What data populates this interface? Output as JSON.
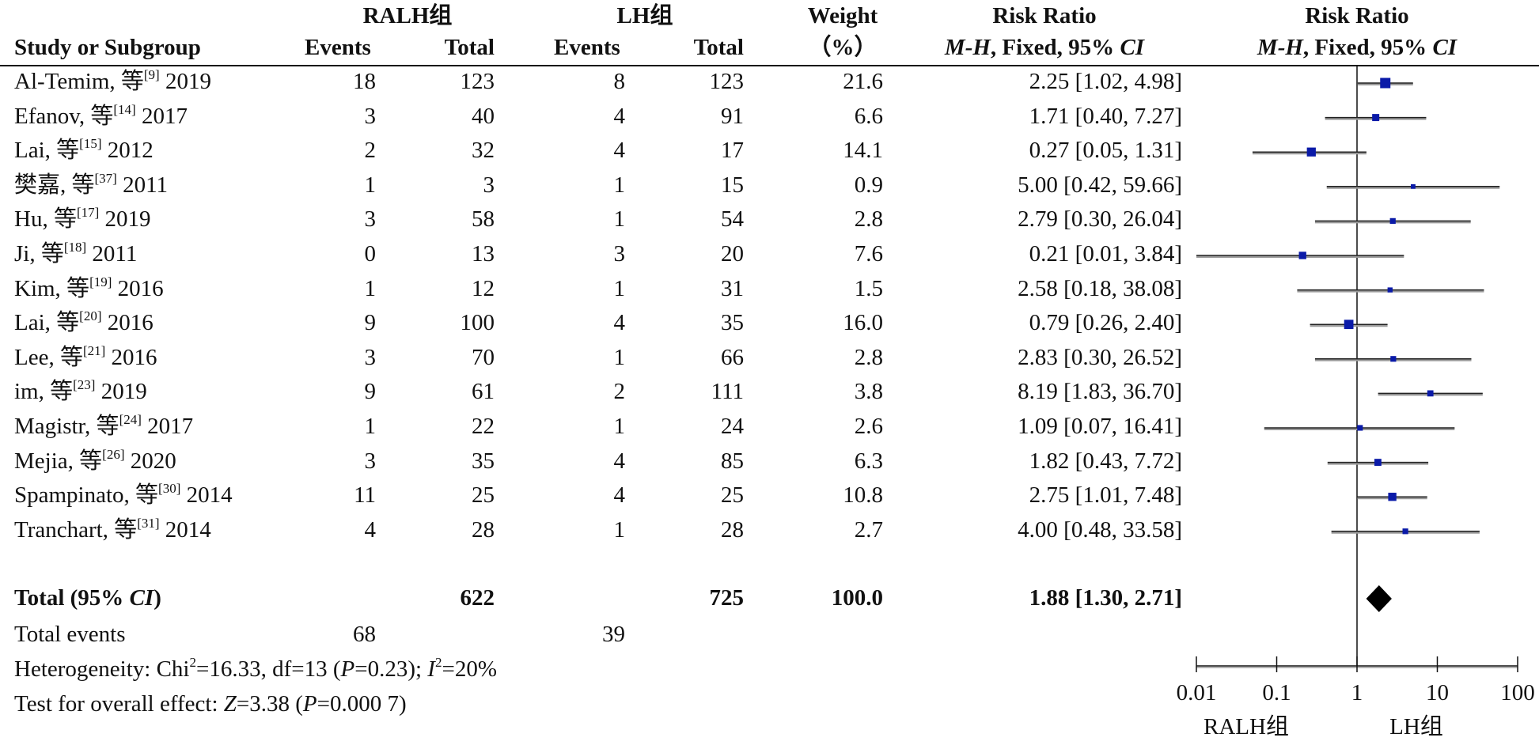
{
  "headers": {
    "group1": "RALH组",
    "group2": "LH组",
    "study": "Study or Subgroup",
    "events1": "Events",
    "total1": "Total",
    "events2": "Events",
    "total2": "Total",
    "weight_top": "Weight",
    "weight_bottom": "（%）",
    "rr_top": "Risk Ratio",
    "rr_bottom_italic1": "M-H",
    "rr_bottom_bold": ", Fixed, 95% ",
    "rr_bottom_italic2": "CI",
    "plot_top": "Risk Ratio",
    "plot_bottom_italic1": "M-H",
    "plot_bottom_bold": ", Fixed, 95% ",
    "plot_bottom_italic2": "CI"
  },
  "studies": [
    {
      "author": "Al-Temim, 等",
      "ref": "[9]",
      "year": "2019",
      "e1": "18",
      "t1": "123",
      "e2": "8",
      "t2": "123",
      "weight": "21.6",
      "ci": "2.25 [1.02, 4.98]"
    },
    {
      "author": "Efanov, 等",
      "ref": "[14]",
      "year": "2017",
      "e1": "3",
      "t1": "40",
      "e2": "4",
      "t2": "91",
      "weight": "6.6",
      "ci": "1.71 [0.40, 7.27]"
    },
    {
      "author": "Lai, 等",
      "ref": "[15]",
      "year": "2012",
      "e1": "2",
      "t1": "32",
      "e2": "4",
      "t2": "17",
      "weight": "14.1",
      "ci": "0.27 [0.05, 1.31]"
    },
    {
      "author": "樊嘉, 等",
      "ref": "[37]",
      "year": "2011",
      "e1": "1",
      "t1": "3",
      "e2": "1",
      "t2": "15",
      "weight": "0.9",
      "ci": "5.00 [0.42, 59.66]"
    },
    {
      "author": "Hu, 等",
      "ref": "[17]",
      "year": "2019",
      "e1": "3",
      "t1": "58",
      "e2": "1",
      "t2": "54",
      "weight": "2.8",
      "ci": "2.79 [0.30, 26.04]"
    },
    {
      "author": "Ji, 等",
      "ref": "[18]",
      "year": "2011",
      "e1": "0",
      "t1": "13",
      "e2": "3",
      "t2": "20",
      "weight": "7.6",
      "ci": "0.21 [0.01, 3.84]"
    },
    {
      "author": "Kim, 等",
      "ref": "[19]",
      "year": "2016",
      "e1": "1",
      "t1": "12",
      "e2": "1",
      "t2": "31",
      "weight": "1.5",
      "ci": "2.58 [0.18, 38.08]"
    },
    {
      "author": "Lai, 等",
      "ref": "[20]",
      "year": "2016",
      "e1": "9",
      "t1": "100",
      "e2": "4",
      "t2": "35",
      "weight": "16.0",
      "ci": "0.79 [0.26, 2.40]"
    },
    {
      "author": "Lee, 等",
      "ref": "[21]",
      "year": "2016",
      "e1": "3",
      "t1": "70",
      "e2": "1",
      "t2": "66",
      "weight": "2.8",
      "ci": "2.83 [0.30, 26.52]"
    },
    {
      "author": "im, 等",
      "ref": "[23]",
      "year": "2019",
      "e1": "9",
      "t1": "61",
      "e2": "2",
      "t2": "111",
      "weight": "3.8",
      "ci": "8.19 [1.83, 36.70]"
    },
    {
      "author": "Magistr, 等",
      "ref": "[24]",
      "year": "2017",
      "e1": "1",
      "t1": "22",
      "e2": "1",
      "t2": "24",
      "weight": "2.6",
      "ci": "1.09 [0.07, 16.41]"
    },
    {
      "author": "Mejia, 等",
      "ref": "[26]",
      "year": "2020",
      "e1": "3",
      "t1": "35",
      "e2": "4",
      "t2": "85",
      "weight": "6.3",
      "ci": "1.82 [0.43, 7.72]"
    },
    {
      "author": "Spampinato, 等",
      "ref": "[30]",
      "year": "2014",
      "e1": "11",
      "t1": "25",
      "e2": "4",
      "t2": "25",
      "weight": "10.8",
      "ci": "2.75 [1.01, 7.48]"
    },
    {
      "author": "Tranchart, 等",
      "ref": "[31]",
      "year": "2014",
      "e1": "4",
      "t1": "28",
      "e2": "1",
      "t2": "28",
      "weight": "2.7",
      "ci": "4.00 [0.48, 33.58]"
    }
  ],
  "total": {
    "label_pre": "Total (95% ",
    "label_italic": "CI",
    "label_post": ")",
    "t1": "622",
    "t2": "725",
    "weight": "100.0",
    "ci": "1.88 [1.30, 2.71]"
  },
  "events": {
    "label": "Total events",
    "e1": "68",
    "e2": "39"
  },
  "heterogeneity": {
    "a": "Heterogeneity: Chi",
    "a_sup": "2",
    "b": "=16.33, df=13 (",
    "p_italic": "P",
    "c": "=0.23); ",
    "i_italic": "I",
    "i_sup": "2",
    "d": "=20%"
  },
  "overall": {
    "a": "Test for overall effect: ",
    "z_italic": "Z",
    "b": "=3.38 (",
    "p_italic": "P",
    "c": "=0.000 7)"
  },
  "axis": {
    "ticks": [
      "0.01",
      "0.1",
      "1",
      "10",
      "100"
    ],
    "left_label": "RALH组",
    "right_label": "LH组"
  },
  "chart_data": {
    "type": "forest",
    "scale": "log",
    "xlim": [
      0.01,
      100
    ],
    "reference_line": 1,
    "studies": [
      {
        "name": "Al-Temim, 等 2019",
        "rr": 2.25,
        "lower": 1.02,
        "upper": 4.98,
        "weight": 21.6
      },
      {
        "name": "Efanov, 等 2017",
        "rr": 1.71,
        "lower": 0.4,
        "upper": 7.27,
        "weight": 6.6
      },
      {
        "name": "Lai, 等 2012",
        "rr": 0.27,
        "lower": 0.05,
        "upper": 1.31,
        "weight": 14.1
      },
      {
        "name": "樊嘉, 等 2011",
        "rr": 5.0,
        "lower": 0.42,
        "upper": 59.66,
        "weight": 0.9
      },
      {
        "name": "Hu, 等 2019",
        "rr": 2.79,
        "lower": 0.3,
        "upper": 26.04,
        "weight": 2.8
      },
      {
        "name": "Ji, 等 2011",
        "rr": 0.21,
        "lower": 0.01,
        "upper": 3.84,
        "weight": 7.6
      },
      {
        "name": "Kim, 等 2016",
        "rr": 2.58,
        "lower": 0.18,
        "upper": 38.08,
        "weight": 1.5
      },
      {
        "name": "Lai, 等 2016",
        "rr": 0.79,
        "lower": 0.26,
        "upper": 2.4,
        "weight": 16.0
      },
      {
        "name": "Lee, 等 2016",
        "rr": 2.83,
        "lower": 0.3,
        "upper": 26.52,
        "weight": 2.8
      },
      {
        "name": "im, 等 2019",
        "rr": 8.19,
        "lower": 1.83,
        "upper": 36.7,
        "weight": 3.8
      },
      {
        "name": "Magistr, 等 2017",
        "rr": 1.09,
        "lower": 0.07,
        "upper": 16.41,
        "weight": 2.6
      },
      {
        "name": "Mejia, 等 2020",
        "rr": 1.82,
        "lower": 0.43,
        "upper": 7.72,
        "weight": 6.3
      },
      {
        "name": "Spampinato, 等 2014",
        "rr": 2.75,
        "lower": 1.01,
        "upper": 7.48,
        "weight": 10.8
      },
      {
        "name": "Tranchart, 等 2014",
        "rr": 4.0,
        "lower": 0.48,
        "upper": 33.58,
        "weight": 2.7
      }
    ],
    "pooled": {
      "rr": 1.88,
      "lower": 1.3,
      "upper": 2.71
    },
    "colors": {
      "box": "#0a1aa8",
      "ci_line": "#222222",
      "ci_shadow": "#9a9a9a",
      "diamond": "#000000"
    }
  }
}
